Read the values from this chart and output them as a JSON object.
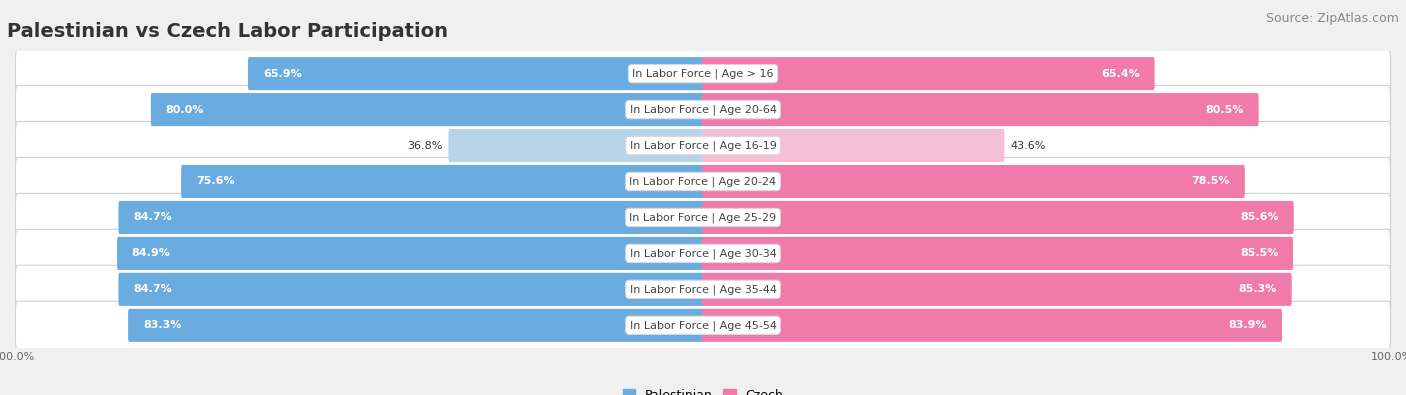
{
  "title": "Palestinian vs Czech Labor Participation",
  "source": "Source: ZipAtlas.com",
  "categories": [
    "In Labor Force | Age > 16",
    "In Labor Force | Age 20-64",
    "In Labor Force | Age 16-19",
    "In Labor Force | Age 20-24",
    "In Labor Force | Age 25-29",
    "In Labor Force | Age 30-34",
    "In Labor Force | Age 35-44",
    "In Labor Force | Age 45-54"
  ],
  "palestinian_values": [
    65.9,
    80.0,
    36.8,
    75.6,
    84.7,
    84.9,
    84.7,
    83.3
  ],
  "czech_values": [
    65.4,
    80.5,
    43.6,
    78.5,
    85.6,
    85.5,
    85.3,
    83.9
  ],
  "palestinian_color": "#6aabe0",
  "czech_color": "#f07aaa",
  "palestinian_color_light": "#b8d4ea",
  "czech_color_light": "#f5c0d5",
  "bar_height": 0.62,
  "bg_color": "#f0f0f0",
  "row_bg_color": "#ffffff",
  "title_fontsize": 14,
  "source_fontsize": 9,
  "label_fontsize": 8,
  "value_fontsize": 8,
  "legend_fontsize": 9,
  "axis_label_fontsize": 8,
  "max_value": 100.0,
  "center_label_color": "#444444"
}
